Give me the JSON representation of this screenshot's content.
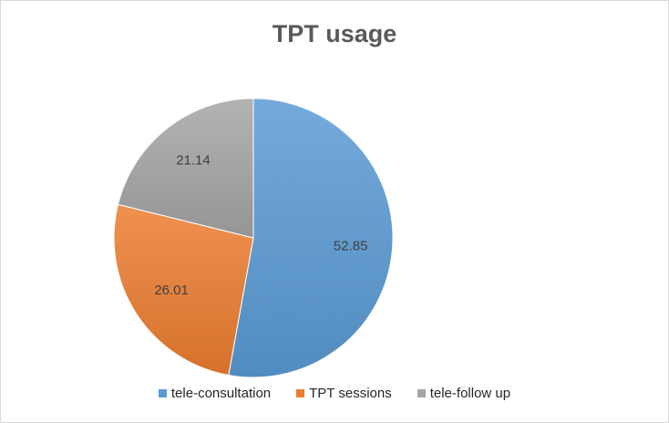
{
  "chart_data": {
    "type": "pie",
    "title": "TPT usage",
    "categories": [
      "tele-consultation",
      "TPT sessions",
      "tele-follow up"
    ],
    "values": [
      52.85,
      26.01,
      21.14
    ],
    "labels": [
      "52.85",
      "26.01",
      "21.14"
    ],
    "colors": [
      "#5b9bd5",
      "#ed7d31",
      "#a5a5a5"
    ],
    "legend_position": "bottom",
    "start_angle_deg": 0,
    "direction": "clockwise"
  }
}
